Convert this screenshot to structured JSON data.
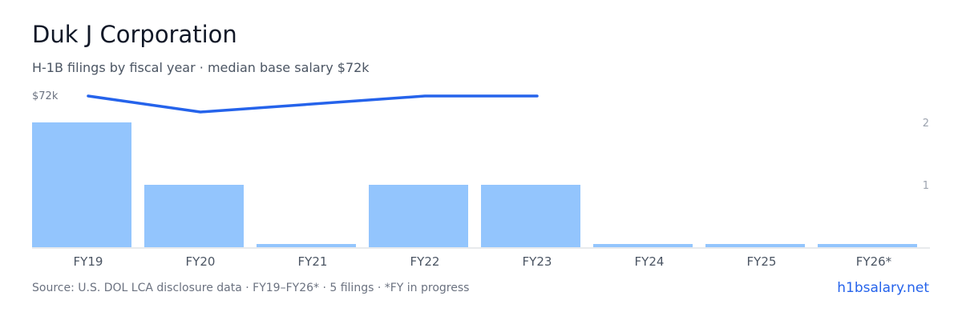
{
  "header": {
    "title": "Duk J Corporation",
    "subtitle": "H-1B filings by fiscal year · median base salary $72k"
  },
  "footer": {
    "source": "Source: U.S. DOL LCA disclosure data · FY19–FY26* · 5 filings · *FY in progress",
    "brand": "h1bsalary.net"
  },
  "colors": {
    "bar": "#93c5fd",
    "line": "#2563eb",
    "axis": "#d1d5db",
    "tick": "#9ca3af",
    "label": "#4b5563"
  },
  "chart_data": {
    "type": "bar",
    "categories": [
      "FY19",
      "FY20",
      "FY21",
      "FY22",
      "FY23",
      "FY24",
      "FY25",
      "FY26*"
    ],
    "series": [
      {
        "kind": "bar",
        "axis": "right",
        "values": [
          2,
          1,
          0,
          1,
          1,
          0,
          0,
          0
        ]
      },
      {
        "kind": "line",
        "axis": "left",
        "values": [
          72,
          68,
          null,
          72,
          72,
          null,
          null,
          null
        ]
      }
    ],
    "left_axis": {
      "ticks": [
        {
          "value": 72,
          "label": "$72k"
        }
      ]
    },
    "right_axis": {
      "ylim": [
        0,
        2
      ],
      "ticks": [
        {
          "value": 1,
          "label": "1"
        },
        {
          "value": 2,
          "label": "2"
        }
      ]
    },
    "grid": false,
    "legend": "none"
  }
}
